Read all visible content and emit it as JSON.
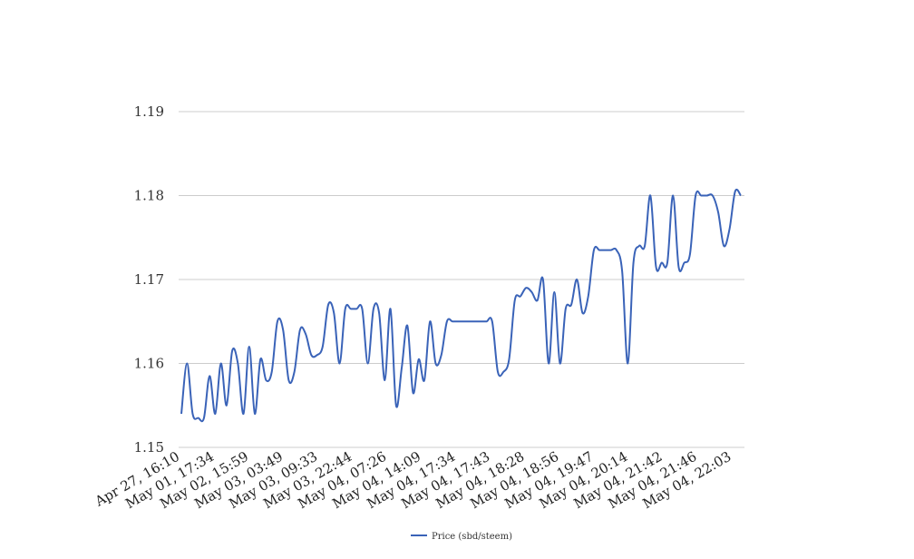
{
  "chart_data": {
    "type": "line",
    "title": "",
    "xlabel": "",
    "ylabel": "",
    "ylim": [
      1.15,
      1.19
    ],
    "yticks": [
      "1.15",
      "1.16",
      "1.17",
      "1.18",
      "1.19"
    ],
    "xtick_labels": [
      "Apr 27, 16:10",
      "May 01, 17:34",
      "May 02, 15:59",
      "May 03, 03:49",
      "May 03, 09:33",
      "May 03, 22:44",
      "May 04, 07:26",
      "May 04, 14:09",
      "May 04, 17:34",
      "May 04, 17:43",
      "May 04, 18:28",
      "May 04, 18:56",
      "May 04, 19:47",
      "May 04, 20:14",
      "May 04, 21:42",
      "May 04, 21:46",
      "May 04, 22:03"
    ],
    "grid": true,
    "legend_position": "bottom",
    "series": [
      {
        "name": "Price (sbd/steem)",
        "color": "#3a63b8",
        "values": [
          1.154,
          1.16,
          1.154,
          1.1535,
          1.1535,
          1.1585,
          1.154,
          1.16,
          1.155,
          1.1615,
          1.16,
          1.154,
          1.162,
          1.154,
          1.1605,
          1.158,
          1.159,
          1.165,
          1.164,
          1.158,
          1.159,
          1.164,
          1.1635,
          1.161,
          1.161,
          1.162,
          1.167,
          1.166,
          1.16,
          1.1665,
          1.1665,
          1.1665,
          1.1665,
          1.16,
          1.1665,
          1.166,
          1.158,
          1.1665,
          1.155,
          1.1595,
          1.1645,
          1.1565,
          1.1605,
          1.158,
          1.165,
          1.16,
          1.161,
          1.165,
          1.165,
          1.165,
          1.165,
          1.165,
          1.165,
          1.165,
          1.165,
          1.165,
          1.159,
          1.159,
          1.1605,
          1.1675,
          1.168,
          1.169,
          1.1685,
          1.1675,
          1.17,
          1.16,
          1.1685,
          1.16,
          1.1665,
          1.167,
          1.17,
          1.166,
          1.168,
          1.1735,
          1.1735,
          1.1735,
          1.1735,
          1.1735,
          1.171,
          1.16,
          1.172,
          1.174,
          1.174,
          1.18,
          1.1715,
          1.172,
          1.172,
          1.18,
          1.1715,
          1.172,
          1.173,
          1.18,
          1.18,
          1.18,
          1.18,
          1.178,
          1.174,
          1.176,
          1.1805,
          1.18
        ]
      }
    ]
  }
}
